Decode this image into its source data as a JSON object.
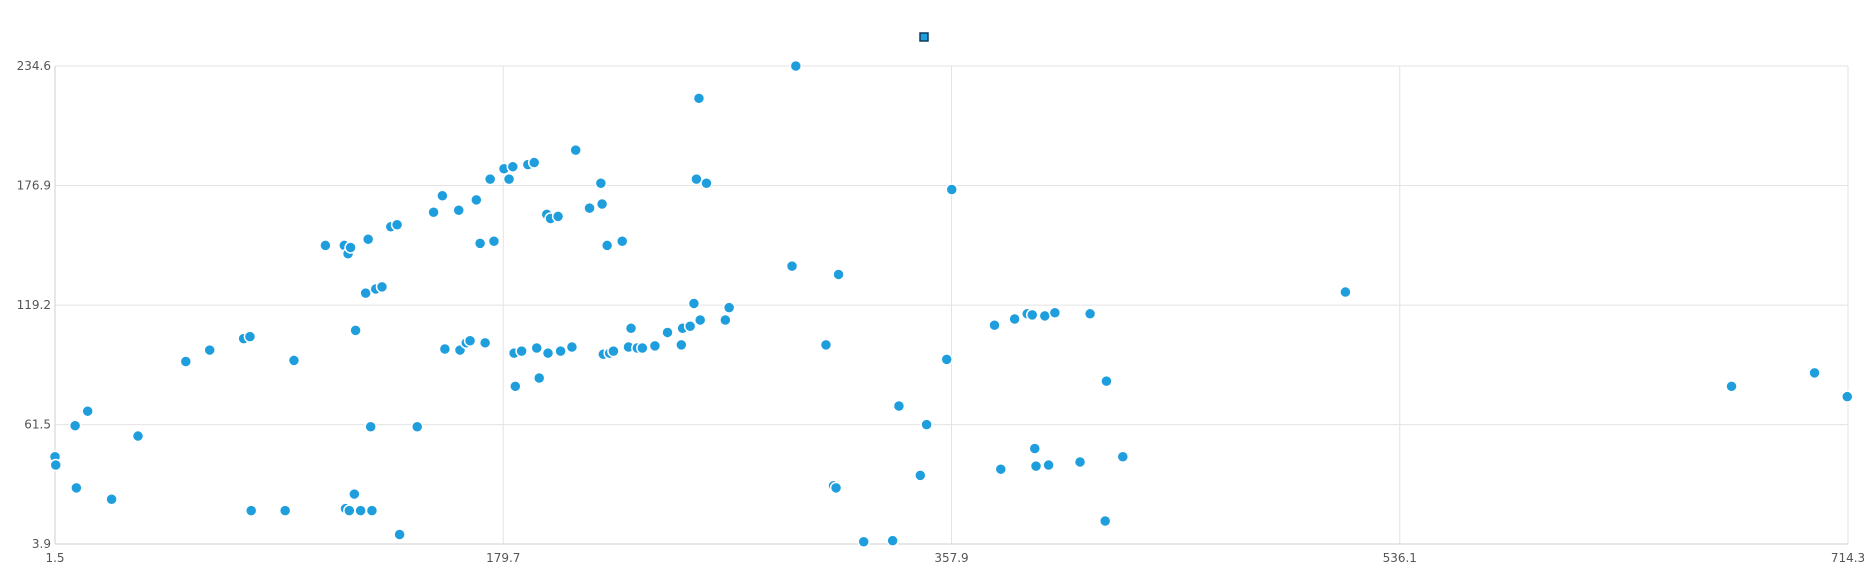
{
  "chart_data": {
    "type": "scatter",
    "title": "",
    "xlabel": "",
    "ylabel": "",
    "xlim": [
      1.5,
      714.3
    ],
    "ylim": [
      3.9,
      234.6
    ],
    "x_ticks": [
      "1.5",
      "179.7",
      "357.9",
      "536.1",
      "714.3"
    ],
    "y_ticks": [
      "3.9",
      "61.5",
      "119.2",
      "176.9",
      "234.6"
    ],
    "grid": true,
    "legend": {
      "position": "top-center",
      "entries": [
        ""
      ]
    },
    "color": "#1f9ede",
    "series": [
      {
        "values": [
          [
            1.5,
            46.0
          ],
          [
            1.8,
            42.0
          ],
          [
            9.5,
            61.0
          ],
          [
            10.0,
            31.0
          ],
          [
            14.5,
            68.0
          ],
          [
            24.0,
            25.5
          ],
          [
            34.5,
            56.0
          ],
          [
            53.5,
            92.0
          ],
          [
            63.0,
            97.5
          ],
          [
            76.5,
            103.0
          ],
          [
            79.0,
            104.0
          ],
          [
            79.5,
            20.0
          ],
          [
            93.0,
            20.0
          ],
          [
            96.5,
            92.5
          ],
          [
            109.0,
            148.0
          ],
          [
            116.5,
            148.0
          ],
          [
            117.0,
            21.0
          ],
          [
            118.0,
            144.0
          ],
          [
            118.5,
            20.0
          ],
          [
            119.0,
            147.0
          ],
          [
            120.5,
            28.0
          ],
          [
            121.0,
            107.0
          ],
          [
            123.0,
            20.0
          ],
          [
            125.0,
            125.0
          ],
          [
            126.0,
            151.0
          ],
          [
            127.0,
            60.5
          ],
          [
            127.5,
            20.0
          ],
          [
            129.0,
            127.0
          ],
          [
            131.5,
            128.0
          ],
          [
            135.0,
            157.0
          ],
          [
            137.5,
            158.0
          ],
          [
            138.5,
            8.5
          ],
          [
            145.5,
            60.5
          ],
          [
            152.0,
            164.0
          ],
          [
            155.5,
            172.0
          ],
          [
            156.5,
            98.0
          ],
          [
            162.0,
            165.0
          ],
          [
            162.5,
            97.5
          ],
          [
            165.0,
            101.0
          ],
          [
            166.5,
            102.0
          ],
          [
            169.0,
            170.0
          ],
          [
            170.5,
            149.0
          ],
          [
            172.5,
            101.0
          ],
          [
            174.5,
            180.0
          ],
          [
            176.0,
            150.0
          ],
          [
            180.0,
            185.0
          ],
          [
            182.0,
            180.0
          ],
          [
            183.5,
            186.0
          ],
          [
            184.0,
            96.0
          ],
          [
            184.5,
            80.0
          ],
          [
            187.0,
            97.0
          ],
          [
            189.5,
            187.0
          ],
          [
            192.0,
            188.0
          ],
          [
            193.0,
            98.5
          ],
          [
            194.0,
            84.0
          ],
          [
            197.0,
            163.0
          ],
          [
            197.5,
            96.0
          ],
          [
            198.5,
            161.0
          ],
          [
            201.5,
            162.0
          ],
          [
            202.5,
            97.0
          ],
          [
            207.0,
            99.0
          ],
          [
            208.5,
            194.0
          ],
          [
            214.0,
            166.0
          ],
          [
            218.5,
            178.0
          ],
          [
            219.0,
            168.0
          ],
          [
            219.5,
            95.5
          ],
          [
            221.0,
            148.0
          ],
          [
            222.0,
            96.0
          ],
          [
            223.5,
            97.0
          ],
          [
            227.0,
            150.0
          ],
          [
            229.5,
            99.0
          ],
          [
            230.5,
            108.0
          ],
          [
            233.0,
            98.5
          ],
          [
            235.0,
            98.5
          ],
          [
            240.0,
            99.5
          ],
          [
            245.0,
            106.0
          ],
          [
            250.5,
            100.0
          ],
          [
            251.0,
            108.0
          ],
          [
            254.0,
            109.0
          ],
          [
            255.5,
            120.0
          ],
          [
            256.5,
            180.0
          ],
          [
            257.5,
            219.0
          ],
          [
            258.0,
            112.0
          ],
          [
            260.5,
            178.0
          ],
          [
            268.0,
            112.0
          ],
          [
            269.5,
            118.0
          ],
          [
            294.5,
            138.0
          ],
          [
            296.0,
            234.6
          ],
          [
            308.0,
            100.0
          ],
          [
            311.0,
            32.0
          ],
          [
            312.0,
            31.0
          ],
          [
            313.0,
            134.0
          ],
          [
            323.0,
            5.0
          ],
          [
            334.5,
            5.5
          ],
          [
            337.0,
            70.5
          ],
          [
            348.0,
            61.5
          ],
          [
            345.5,
            37.0
          ],
          [
            356.0,
            93.0
          ],
          [
            358.0,
            175.0
          ],
          [
            375.0,
            109.5
          ],
          [
            377.5,
            40.0
          ],
          [
            383.0,
            112.5
          ],
          [
            388.0,
            115.0
          ],
          [
            390.0,
            114.5
          ],
          [
            391.0,
            50.0
          ],
          [
            391.5,
            41.5
          ],
          [
            395.0,
            114.0
          ],
          [
            396.5,
            42.0
          ],
          [
            399.0,
            115.5
          ],
          [
            409.0,
            43.5
          ],
          [
            413.0,
            115.0
          ],
          [
            419.5,
            82.5
          ],
          [
            419.0,
            15.0
          ],
          [
            426.0,
            46.0
          ],
          [
            514.5,
            125.5
          ],
          [
            668.0,
            80.0
          ],
          [
            701.0,
            86.5
          ],
          [
            714.0,
            75.0
          ]
        ]
      }
    ]
  }
}
